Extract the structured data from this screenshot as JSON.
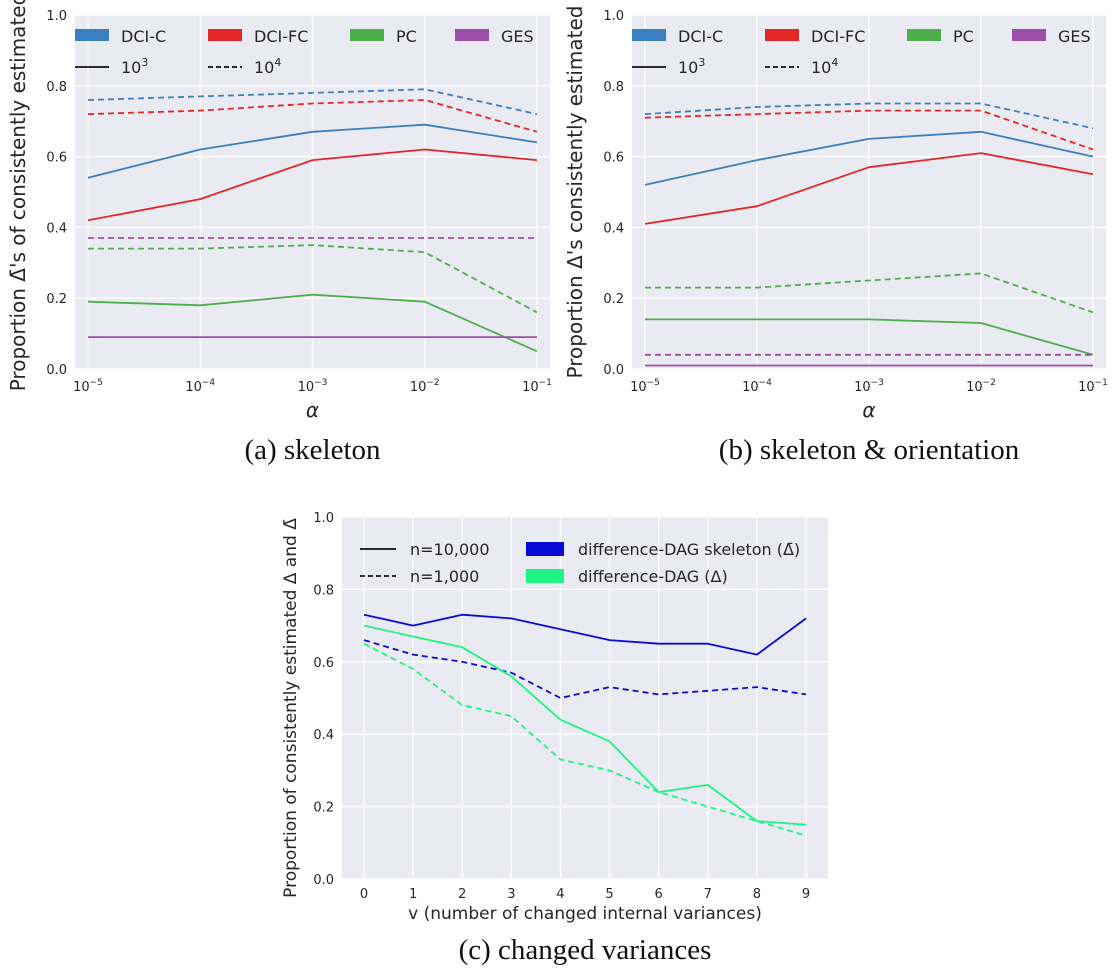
{
  "chart_data": [
    {
      "type": "line",
      "caption": "(a) skeleton",
      "xlabel": "α",
      "ylabel": "Proportion Δ̄'s of consistently estimated",
      "x_scale": "log",
      "x": [
        "10^-5",
        "10^-4",
        "10^-3",
        "10^-2",
        "10^-1"
      ],
      "x_values": [
        1e-05,
        0.0001,
        0.001,
        0.01,
        0.1
      ],
      "ylim": [
        0,
        1
      ],
      "yticks": [
        "0.0",
        "0.2",
        "0.4",
        "0.6",
        "0.8",
        "1.0"
      ],
      "grid": true,
      "legend": {
        "placement": "top",
        "methods": [
          {
            "name": "DCI-C",
            "color": "#3a7fc0"
          },
          {
            "name": "DCI-FC",
            "color": "#e32727"
          },
          {
            "name": "PC",
            "color": "#4daf4a"
          },
          {
            "name": "GES",
            "color": "#9c4ea8"
          }
        ],
        "styles": [
          {
            "name": "10^3",
            "base": "10",
            "exp": "3",
            "dash": "solid"
          },
          {
            "name": "10^4",
            "base": "10",
            "exp": "4",
            "dash": "dashed"
          }
        ]
      },
      "series": [
        {
          "method": "DCI-C",
          "n": "10^3",
          "color": "#3a7fc0",
          "dash": "solid",
          "values": [
            0.54,
            0.62,
            0.67,
            0.69,
            0.64
          ]
        },
        {
          "method": "DCI-C",
          "n": "10^4",
          "color": "#3a7fc0",
          "dash": "dashed",
          "values": [
            0.76,
            0.77,
            0.78,
            0.79,
            0.72
          ]
        },
        {
          "method": "DCI-FC",
          "n": "10^3",
          "color": "#e32727",
          "dash": "solid",
          "values": [
            0.42,
            0.48,
            0.59,
            0.62,
            0.59
          ]
        },
        {
          "method": "DCI-FC",
          "n": "10^4",
          "color": "#e32727",
          "dash": "dashed",
          "values": [
            0.72,
            0.73,
            0.75,
            0.76,
            0.67
          ]
        },
        {
          "method": "PC",
          "n": "10^3",
          "color": "#4daf4a",
          "dash": "solid",
          "values": [
            0.19,
            0.18,
            0.21,
            0.19,
            0.05
          ]
        },
        {
          "method": "PC",
          "n": "10^4",
          "color": "#4daf4a",
          "dash": "dashed",
          "values": [
            0.34,
            0.34,
            0.35,
            0.33,
            0.16
          ]
        },
        {
          "method": "GES",
          "n": "10^3",
          "color": "#9c4ea8",
          "dash": "solid",
          "values": [
            0.09,
            0.09,
            0.09,
            0.09,
            0.09
          ]
        },
        {
          "method": "GES",
          "n": "10^4",
          "color": "#9c4ea8",
          "dash": "dashed",
          "values": [
            0.37,
            0.37,
            0.37,
            0.37,
            0.37
          ]
        }
      ]
    },
    {
      "type": "line",
      "caption": "(b) skeleton & orientation",
      "xlabel": "α",
      "ylabel": "Proportion Δ's consistently estimated",
      "x_scale": "log",
      "x": [
        "10^-5",
        "10^-4",
        "10^-3",
        "10^-2",
        "10^-1"
      ],
      "x_values": [
        1e-05,
        0.0001,
        0.001,
        0.01,
        0.1
      ],
      "ylim": [
        0,
        1
      ],
      "yticks": [
        "0.0",
        "0.2",
        "0.4",
        "0.6",
        "0.8",
        "1.0"
      ],
      "grid": true,
      "legend": {
        "placement": "top",
        "methods": [
          {
            "name": "DCI-C",
            "color": "#3a7fc0"
          },
          {
            "name": "DCI-FC",
            "color": "#e32727"
          },
          {
            "name": "PC",
            "color": "#4daf4a"
          },
          {
            "name": "GES",
            "color": "#9c4ea8"
          }
        ],
        "styles": [
          {
            "name": "10^3",
            "base": "10",
            "exp": "3",
            "dash": "solid"
          },
          {
            "name": "10^4",
            "base": "10",
            "exp": "4",
            "dash": "dashed"
          }
        ]
      },
      "series": [
        {
          "method": "DCI-C",
          "n": "10^3",
          "color": "#3a7fc0",
          "dash": "solid",
          "values": [
            0.52,
            0.59,
            0.65,
            0.67,
            0.6
          ]
        },
        {
          "method": "DCI-C",
          "n": "10^4",
          "color": "#3a7fc0",
          "dash": "dashed",
          "values": [
            0.72,
            0.74,
            0.75,
            0.75,
            0.68
          ]
        },
        {
          "method": "DCI-FC",
          "n": "10^3",
          "color": "#e32727",
          "dash": "solid",
          "values": [
            0.41,
            0.46,
            0.57,
            0.61,
            0.55
          ]
        },
        {
          "method": "DCI-FC",
          "n": "10^4",
          "color": "#e32727",
          "dash": "dashed",
          "values": [
            0.71,
            0.72,
            0.73,
            0.73,
            0.62
          ]
        },
        {
          "method": "PC",
          "n": "10^3",
          "color": "#4daf4a",
          "dash": "solid",
          "values": [
            0.14,
            0.14,
            0.14,
            0.13,
            0.04
          ]
        },
        {
          "method": "PC",
          "n": "10^4",
          "color": "#4daf4a",
          "dash": "dashed",
          "values": [
            0.23,
            0.23,
            0.25,
            0.27,
            0.16
          ]
        },
        {
          "method": "GES",
          "n": "10^3",
          "color": "#9c4ea8",
          "dash": "solid",
          "values": [
            0.01,
            0.01,
            0.01,
            0.01,
            0.01
          ]
        },
        {
          "method": "GES",
          "n": "10^4",
          "color": "#9c4ea8",
          "dash": "dashed",
          "values": [
            0.04,
            0.04,
            0.04,
            0.04,
            0.04
          ]
        }
      ]
    },
    {
      "type": "line",
      "caption": "(c) changed variances",
      "xlabel": "v (number of changed internal variances)",
      "ylabel": "Proportion of consistently estimated Δ and Δ̄",
      "x": [
        0,
        1,
        2,
        3,
        4,
        5,
        6,
        7,
        8,
        9
      ],
      "ylim": [
        0,
        1
      ],
      "yticks": [
        "0.0",
        "0.2",
        "0.4",
        "0.6",
        "0.8",
        "1.0"
      ],
      "grid": true,
      "legend": {
        "placement": "top",
        "styles": [
          {
            "name": "n=10,000",
            "dash": "solid"
          },
          {
            "name": "n=1,000",
            "dash": "dashed"
          }
        ],
        "methods": [
          {
            "name": "difference-DAG skeleton (Δ̄)",
            "color": "#0a0ad6"
          },
          {
            "name": "difference-DAG (Δ)",
            "color": "#1df582"
          }
        ]
      },
      "series": [
        {
          "method": "difference-DAG skeleton (Δ̄)",
          "n": "n=10,000",
          "color": "#0a0ad6",
          "dash": "solid",
          "values": [
            0.73,
            0.7,
            0.73,
            0.72,
            0.69,
            0.66,
            0.65,
            0.65,
            0.62,
            0.72
          ]
        },
        {
          "method": "difference-DAG skeleton (Δ̄)",
          "n": "n=1,000",
          "color": "#0a0ad6",
          "dash": "dashed",
          "values": [
            0.66,
            0.62,
            0.6,
            0.57,
            0.5,
            0.53,
            0.51,
            0.52,
            0.53,
            0.51
          ]
        },
        {
          "method": "difference-DAG (Δ)",
          "n": "n=10,000",
          "color": "#1df582",
          "dash": "solid",
          "values": [
            0.7,
            0.67,
            0.64,
            0.56,
            0.44,
            0.38,
            0.24,
            0.26,
            0.16,
            0.15
          ]
        },
        {
          "method": "difference-DAG (Δ)",
          "n": "n=1,000",
          "color": "#1df582",
          "dash": "dashed",
          "values": [
            0.65,
            0.58,
            0.48,
            0.45,
            0.33,
            0.3,
            0.24,
            0.2,
            0.16,
            0.12
          ]
        }
      ]
    }
  ]
}
